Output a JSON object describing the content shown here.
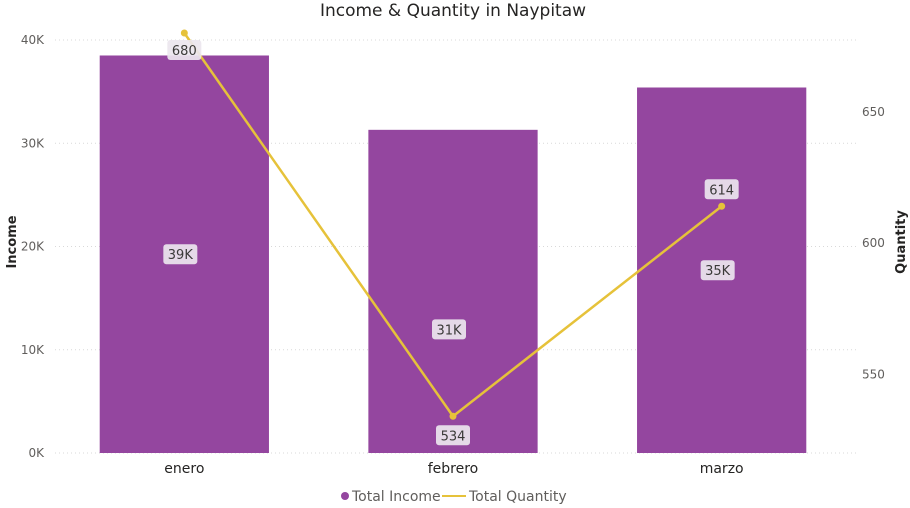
{
  "chart_data": {
    "type": "bar",
    "title": "Income & Quantity in Naypitaw",
    "categories": [
      "enero",
      "febrero",
      "marzo"
    ],
    "y_left": {
      "label": "Income",
      "lim": [
        0,
        40000
      ],
      "ticks": [
        "0K",
        "10K",
        "20K",
        "30K",
        "40K"
      ],
      "tick_values": [
        0,
        10000,
        20000,
        30000,
        40000
      ]
    },
    "y_right": {
      "label": "Quantity",
      "lim": [
        520,
        680
      ],
      "ticks": [
        "550",
        "600",
        "650"
      ],
      "tick_values": [
        550,
        600,
        650
      ]
    },
    "series": [
      {
        "name": "Total Income",
        "type": "bar",
        "axis": "left",
        "values": [
          38500,
          31300,
          35400
        ],
        "labels": [
          "39K",
          "31K",
          "35K"
        ],
        "color": "#94469f"
      },
      {
        "name": "Total Quantity",
        "type": "line",
        "axis": "right",
        "values": [
          680,
          534,
          614
        ],
        "labels": [
          "680",
          "534",
          "614"
        ],
        "color": "#e6c23a"
      }
    ],
    "grid": true,
    "legend_position": "bottom-center"
  }
}
